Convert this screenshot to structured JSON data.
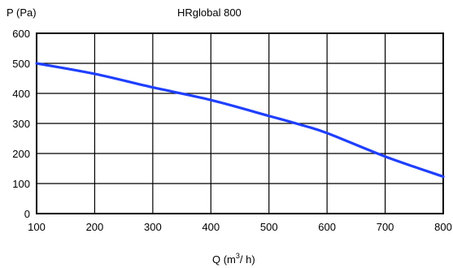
{
  "chart_data": {
    "type": "line",
    "title": "HRglobal 800",
    "ylabel": "P  (Pa)",
    "xlabel_main": "Q  (m",
    "xlabel_sup": "3",
    "xlabel_tail": "/ h)",
    "xlim": [
      100,
      800
    ],
    "ylim": [
      0,
      600
    ],
    "xticks": [
      "100",
      "200",
      "300",
      "400",
      "500",
      "600",
      "700",
      "800"
    ],
    "yticks": [
      "0",
      "100",
      "200",
      "300",
      "400",
      "500",
      "600"
    ],
    "grid": true,
    "series": [
      {
        "color": "#1f3fff",
        "x": [
          100,
          200,
          300,
          400,
          500,
          550,
          600,
          700,
          800
        ],
        "y": [
          500,
          465,
          420,
          378,
          325,
          298,
          268,
          190,
          123
        ]
      }
    ]
  }
}
